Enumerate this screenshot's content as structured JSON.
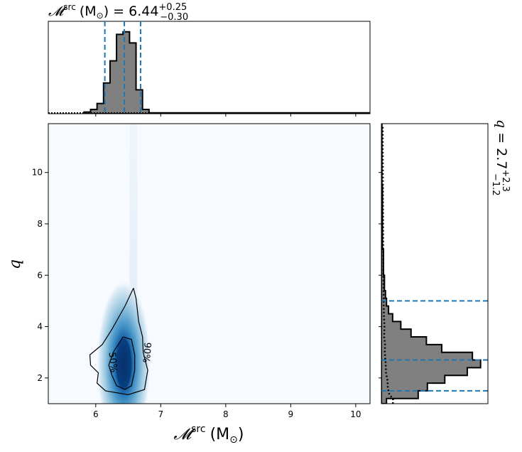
{
  "chart_data": {
    "type": "corner",
    "colors": {
      "hist_fill": "#808080",
      "hist_edge": "#000000",
      "quantile_line": "#1f77b4",
      "density_cmap": [
        "#f7fbff",
        "#deebf7",
        "#9ecae1",
        "#4292c6",
        "#08519c",
        "#08306b"
      ],
      "contour": "#000000"
    },
    "top_panel": {
      "title": {
        "symbol": "𝓜",
        "sup": "src",
        "unit": "(M",
        "unit_sub": "⊙",
        "unit_close": ") = 6.44",
        "upper": "+0.25",
        "lower": "−0.30"
      },
      "xlim": [
        5.27,
        10.22
      ],
      "bins": [
        {
          "x0": 5.82,
          "x1": 5.92,
          "h": 0.02
        },
        {
          "x0": 5.92,
          "x1": 6.02,
          "h": 0.05
        },
        {
          "x0": 6.02,
          "x1": 6.12,
          "h": 0.12
        },
        {
          "x0": 6.12,
          "x1": 6.22,
          "h": 0.36
        },
        {
          "x0": 6.22,
          "x1": 6.32,
          "h": 0.62
        },
        {
          "x0": 6.32,
          "x1": 6.42,
          "h": 0.93
        },
        {
          "x0": 6.42,
          "x1": 6.52,
          "h": 0.96
        },
        {
          "x0": 6.52,
          "x1": 6.62,
          "h": 0.83
        },
        {
          "x0": 6.62,
          "x1": 6.72,
          "h": 0.28
        },
        {
          "x0": 6.72,
          "x1": 6.82,
          "h": 0.05
        },
        {
          "x0": 6.82,
          "x1": 10.22,
          "h": 0.01
        }
      ],
      "quantiles": [
        6.14,
        6.44,
        6.69
      ]
    },
    "main_panel": {
      "xlabel": {
        "symbol": "𝓜",
        "sup": "src",
        "unit": "(M",
        "unit_sub": "⊙",
        "unit_close": ")"
      },
      "ylabel": "q",
      "xlim": [
        5.27,
        10.22
      ],
      "ylim": [
        1.0,
        11.9
      ],
      "xticks": [
        6,
        7,
        8,
        9,
        10
      ],
      "yticks": [
        2,
        4,
        6,
        8,
        10
      ],
      "xtick_labels": [
        "6",
        "7",
        "8",
        "9",
        "10"
      ],
      "ytick_labels": [
        "2",
        "4",
        "6",
        "8",
        "10"
      ],
      "density_peak": {
        "x": 6.43,
        "y": 2.55
      },
      "contours": [
        {
          "label": "90%",
          "points": [
            [
              6.58,
              5.5
            ],
            [
              6.62,
              5.1
            ],
            [
              6.66,
              4.2
            ],
            [
              6.72,
              3.6
            ],
            [
              6.73,
              3.0
            ],
            [
              6.8,
              2.3
            ],
            [
              6.75,
              1.55
            ],
            [
              6.5,
              1.35
            ],
            [
              6.15,
              1.5
            ],
            [
              6.02,
              1.8
            ],
            [
              6.04,
              2.2
            ],
            [
              5.92,
              2.5
            ],
            [
              5.91,
              2.9
            ],
            [
              6.1,
              3.3
            ],
            [
              6.25,
              3.9
            ],
            [
              6.45,
              4.8
            ],
            [
              6.58,
              5.5
            ]
          ]
        },
        {
          "label": "50%",
          "points": [
            [
              6.42,
              3.6
            ],
            [
              6.55,
              3.5
            ],
            [
              6.6,
              2.9
            ],
            [
              6.6,
              2.3
            ],
            [
              6.55,
              1.7
            ],
            [
              6.45,
              1.55
            ],
            [
              6.32,
              1.7
            ],
            [
              6.25,
              2.1
            ],
            [
              6.2,
              2.5
            ],
            [
              6.27,
              3.0
            ],
            [
              6.42,
              3.6
            ]
          ]
        }
      ],
      "contour_labels": [
        "50%",
        "90%"
      ]
    },
    "right_panel": {
      "title": {
        "symbol": "q",
        "equals": " = 2.7",
        "upper": "+2.3",
        "lower": "−1.2"
      },
      "ylim": [
        1.0,
        11.9
      ],
      "bins": [
        {
          "y0": 1.0,
          "y1": 1.2,
          "w": 0.05
        },
        {
          "y0": 1.2,
          "y1": 1.5,
          "w": 0.36
        },
        {
          "y0": 1.5,
          "y1": 1.8,
          "w": 0.45
        },
        {
          "y0": 1.8,
          "y1": 2.1,
          "w": 0.62
        },
        {
          "y0": 2.1,
          "y1": 2.4,
          "w": 0.84
        },
        {
          "y0": 2.4,
          "y1": 2.7,
          "w": 0.97
        },
        {
          "y0": 2.7,
          "y1": 3.0,
          "w": 0.89
        },
        {
          "y0": 3.0,
          "y1": 3.3,
          "w": 0.59
        },
        {
          "y0": 3.3,
          "y1": 3.6,
          "w": 0.44
        },
        {
          "y0": 3.6,
          "y1": 3.9,
          "w": 0.29
        },
        {
          "y0": 3.9,
          "y1": 4.2,
          "w": 0.19
        },
        {
          "y0": 4.2,
          "y1": 4.5,
          "w": 0.11
        },
        {
          "y0": 4.5,
          "y1": 4.8,
          "w": 0.07
        },
        {
          "y0": 4.8,
          "y1": 5.1,
          "w": 0.05
        },
        {
          "y0": 5.1,
          "y1": 5.4,
          "w": 0.04
        },
        {
          "y0": 5.4,
          "y1": 5.7,
          "w": 0.03
        },
        {
          "y0": 5.7,
          "y1": 6.0,
          "w": 0.03
        },
        {
          "y0": 6.0,
          "y1": 6.5,
          "w": 0.02
        },
        {
          "y0": 6.5,
          "y1": 7.0,
          "w": 0.02
        },
        {
          "y0": 7.0,
          "y1": 9.5,
          "w": 0.01
        },
        {
          "y0": 9.5,
          "y1": 11.9,
          "w": 0.005
        }
      ],
      "quantiles": [
        1.5,
        2.7,
        5.0
      ],
      "prior_dotted": [
        [
          1.0,
          0.75
        ],
        [
          1.2,
          0.76
        ],
        [
          1.35,
          0.52
        ],
        [
          1.6,
          0.42
        ],
        [
          1.9,
          0.4
        ],
        [
          2.2,
          0.3
        ],
        [
          2.6,
          0.28
        ],
        [
          3.0,
          0.22
        ],
        [
          3.3,
          0.24
        ],
        [
          3.6,
          0.18
        ],
        [
          4.0,
          0.2
        ],
        [
          4.4,
          0.17
        ],
        [
          5.0,
          0.15
        ],
        [
          5.5,
          0.14
        ],
        [
          6.0,
          0.13
        ],
        [
          7.0,
          0.12
        ],
        [
          8.0,
          0.11
        ],
        [
          9.0,
          0.1
        ],
        [
          10.0,
          0.1
        ],
        [
          11.0,
          0.09
        ],
        [
          11.8,
          0.09
        ]
      ]
    }
  }
}
